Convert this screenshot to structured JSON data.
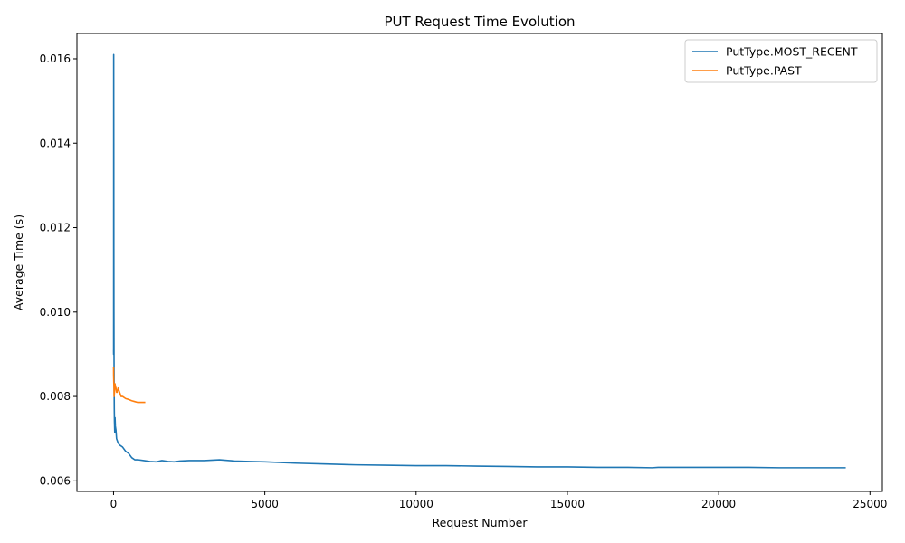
{
  "chart_data": {
    "type": "line",
    "title": "PUT Request Time Evolution",
    "xlabel": "Request Number",
    "ylabel": "Average Time (s)",
    "xlim": [
      -1210,
      25410
    ],
    "ylim": [
      0.00575,
      0.0166
    ],
    "x_ticks": [
      0,
      5000,
      10000,
      15000,
      20000,
      25000
    ],
    "x_tick_labels": [
      "0",
      "5000",
      "10000",
      "15000",
      "20000",
      "25000"
    ],
    "y_ticks": [
      0.006,
      0.008,
      0.01,
      0.012,
      0.014,
      0.016
    ],
    "y_tick_labels": [
      "0.006",
      "0.008",
      "0.010",
      "0.012",
      "0.014",
      "0.016"
    ],
    "grid": false,
    "legend_position": "top-right",
    "series": [
      {
        "name": "PutType.MOST_RECENT",
        "color": "#1f77b4",
        "x": [
          1,
          3,
          5,
          8,
          10,
          13,
          16,
          20,
          25,
          30,
          40,
          50,
          60,
          80,
          100,
          150,
          200,
          300,
          400,
          500,
          600,
          700,
          800,
          1000,
          1200,
          1400,
          1600,
          1800,
          2000,
          2200,
          2500,
          3000,
          3500,
          4000,
          4500,
          5000,
          6000,
          7000,
          8000,
          9000,
          10000,
          11000,
          12000,
          13000,
          14000,
          15000,
          16000,
          17000,
          17800,
          18000,
          19000,
          20000,
          21000,
          22000,
          23000,
          24000,
          24200
        ],
        "y": [
          0.0091,
          0.009,
          0.0161,
          0.014,
          0.0115,
          0.01,
          0.009,
          0.0083,
          0.0077,
          0.0074,
          0.00715,
          0.0075,
          0.0073,
          0.0072,
          0.007,
          0.0069,
          0.00685,
          0.0068,
          0.0067,
          0.00665,
          0.00655,
          0.0065,
          0.0065,
          0.00648,
          0.00646,
          0.00645,
          0.00648,
          0.00646,
          0.00645,
          0.00647,
          0.00648,
          0.00648,
          0.0065,
          0.00647,
          0.00646,
          0.00645,
          0.00642,
          0.0064,
          0.00638,
          0.00637,
          0.00636,
          0.00636,
          0.00635,
          0.00634,
          0.00633,
          0.00633,
          0.00632,
          0.00632,
          0.00631,
          0.00632,
          0.00632,
          0.00632,
          0.00632,
          0.00631,
          0.00631,
          0.00631,
          0.00631
        ]
      },
      {
        "name": "PutType.PAST",
        "color": "#ff7f0e",
        "x": [
          1,
          3,
          6,
          10,
          15,
          20,
          30,
          40,
          50,
          60,
          80,
          100,
          120,
          150,
          200,
          250,
          300,
          400,
          500,
          600,
          700,
          800,
          900,
          1000,
          1050
        ],
        "y": [
          0.0087,
          0.0085,
          0.0084,
          0.0083,
          0.0082,
          0.008,
          0.0081,
          0.0082,
          0.0083,
          0.00825,
          0.0082,
          0.0081,
          0.0081,
          0.0082,
          0.0081,
          0.008,
          0.008,
          0.00795,
          0.00793,
          0.0079,
          0.00788,
          0.00786,
          0.00786,
          0.00786,
          0.00786
        ]
      }
    ]
  }
}
